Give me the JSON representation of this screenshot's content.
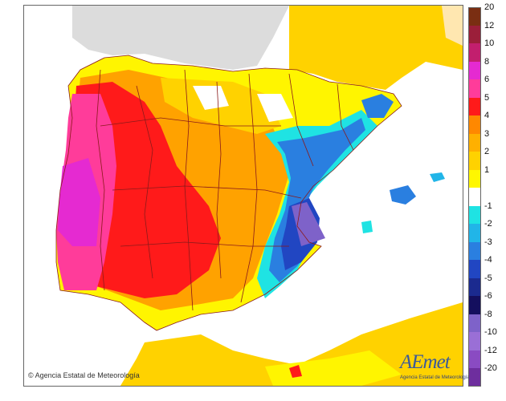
{
  "credit": "Agencia Estatal de Meteorología",
  "logo": {
    "wordmark": "AEmet",
    "subtitle": "Agencia Estatal de Meteorología"
  },
  "legend": {
    "warm": [
      {
        "label": "20",
        "color": "#7a2e12"
      },
      {
        "label": "12",
        "color": "#9b1f3a"
      },
      {
        "label": "10",
        "color": "#c21f6e"
      },
      {
        "label": "8",
        "color": "#e52ad1"
      },
      {
        "label": "6",
        "color": "#ff3c9a"
      },
      {
        "label": "5",
        "color": "#ff1a1a"
      },
      {
        "label": "4",
        "color": "#ff8800"
      },
      {
        "label": "3",
        "color": "#ffb000"
      },
      {
        "label": "2",
        "color": "#ffd200"
      },
      {
        "label": "1",
        "color": "#fff700"
      }
    ],
    "cold": [
      {
        "label": "-1",
        "color": "#1fe3e3"
      },
      {
        "label": "-2",
        "color": "#21b5e8"
      },
      {
        "label": "-3",
        "color": "#2a7fe0"
      },
      {
        "label": "-4",
        "color": "#2146c2"
      },
      {
        "label": "-5",
        "color": "#1b2a8f"
      },
      {
        "label": "-6",
        "color": "#140f5e"
      },
      {
        "label": "-8",
        "color": "#7e62c9"
      },
      {
        "label": "-10",
        "color": "#9a6fd6"
      },
      {
        "label": "-12",
        "color": "#8a4bc2"
      },
      {
        "label": "-20",
        "color": "#6e2e9e"
      }
    ]
  }
}
